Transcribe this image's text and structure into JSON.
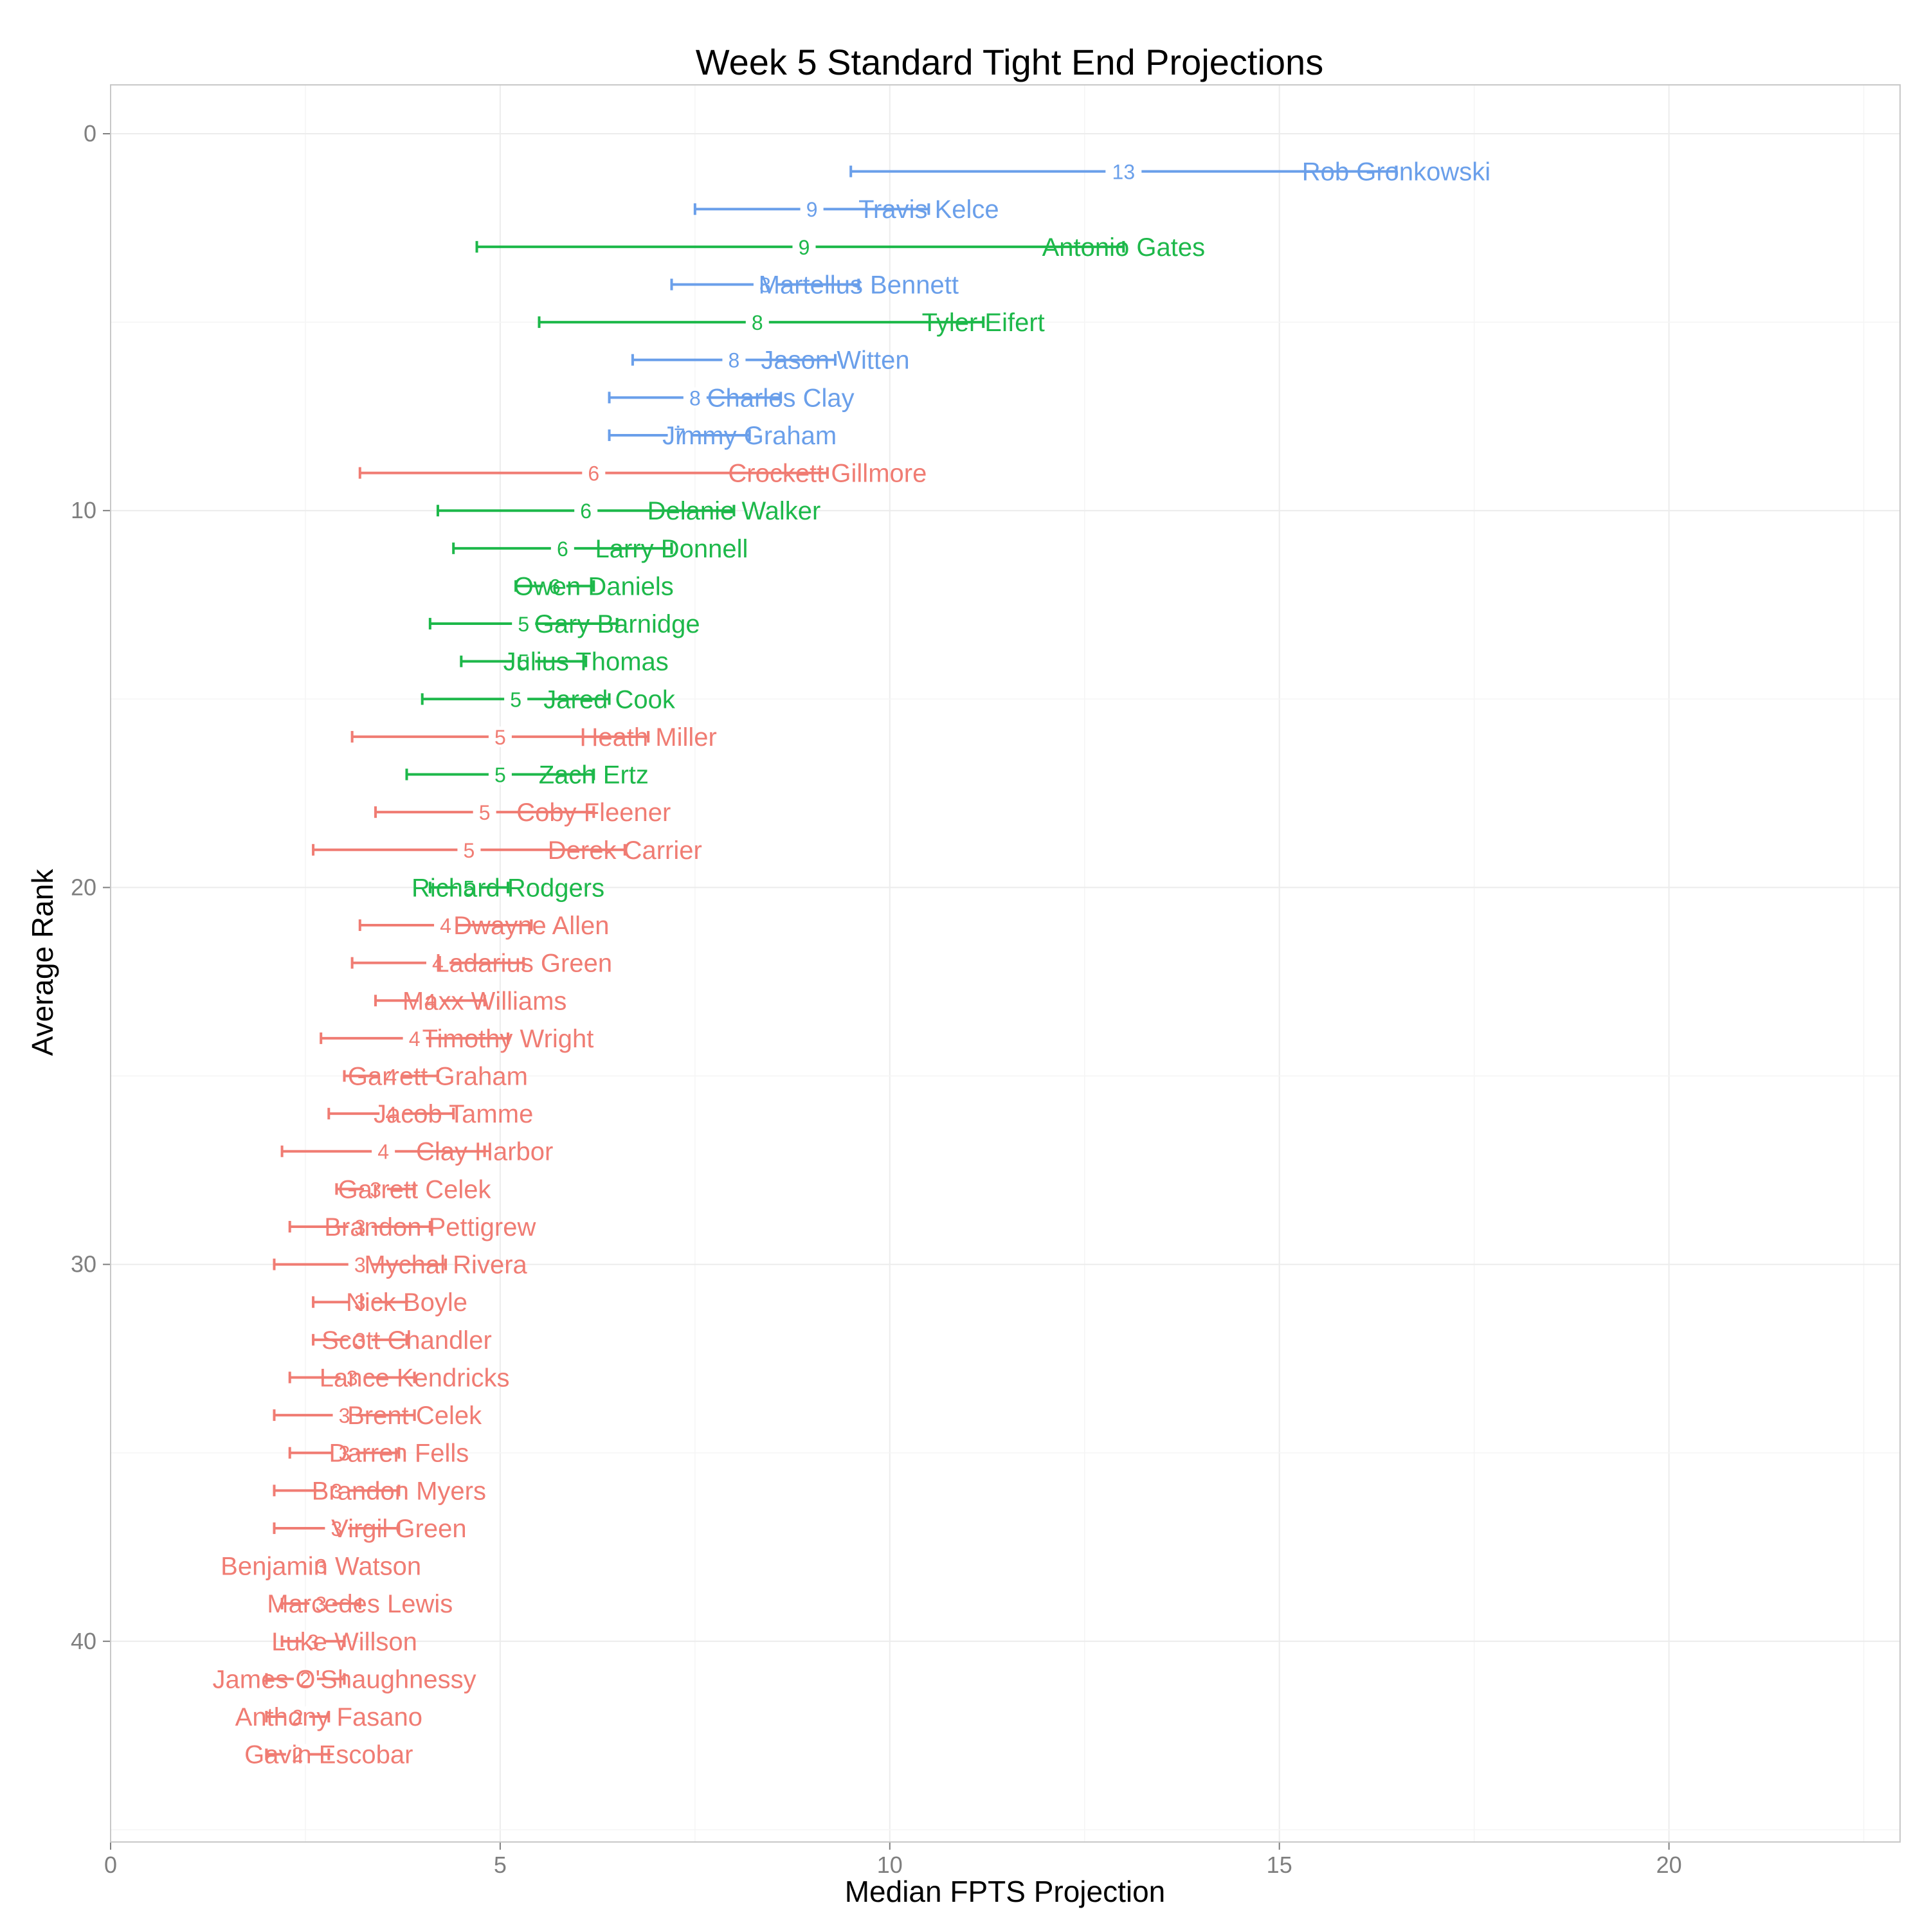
{
  "chart_data": {
    "type": "errorbar",
    "title": "Week 5 Standard Tight End Projections",
    "xlabel": "Median FPTS Projection",
    "ylabel": "Average Rank",
    "xlim": [
      0,
      23
    ],
    "ylim": [
      0,
      45
    ],
    "x_ticks": [
      0,
      5,
      10,
      15,
      20
    ],
    "y_ticks": [
      0,
      10,
      20,
      30,
      40
    ],
    "grid": true,
    "colors": {
      "tier1": "#6a9fea",
      "tier2": "#1db84a",
      "tier3": "#f07c73"
    },
    "players": [
      {
        "name": "Rob Gronkowski",
        "rank": 1,
        "proj_label": "13",
        "low": 9.5,
        "high": 16.5,
        "median": 13,
        "tier": "tier1"
      },
      {
        "name": "Travis Kelce",
        "rank": 2,
        "proj_label": "9",
        "low": 7.5,
        "high": 10.5,
        "median": 9,
        "tier": "tier1"
      },
      {
        "name": "Antonio Gates",
        "rank": 3,
        "proj_label": "9",
        "low": 4.7,
        "high": 13.0,
        "median": 8.9,
        "tier": "tier2"
      },
      {
        "name": "Martellus Bennett",
        "rank": 4,
        "proj_label": "8",
        "low": 7.2,
        "high": 9.6,
        "median": 8.4,
        "tier": "tier1"
      },
      {
        "name": "Tyler Eifert",
        "rank": 5,
        "proj_label": "8",
        "low": 5.5,
        "high": 11.2,
        "median": 8.3,
        "tier": "tier2"
      },
      {
        "name": "Jason Witten",
        "rank": 6,
        "proj_label": "8",
        "low": 6.7,
        "high": 9.3,
        "median": 8.0,
        "tier": "tier1"
      },
      {
        "name": "Charles Clay",
        "rank": 7,
        "proj_label": "8",
        "low": 6.4,
        "high": 8.6,
        "median": 7.5,
        "tier": "tier1"
      },
      {
        "name": "Jimmy Graham",
        "rank": 8,
        "proj_label": "7",
        "low": 6.4,
        "high": 8.2,
        "median": 7.3,
        "tier": "tier1"
      },
      {
        "name": "Crockett Gillmore",
        "rank": 9,
        "proj_label": "6",
        "low": 3.2,
        "high": 9.2,
        "median": 6.2,
        "tier": "tier3"
      },
      {
        "name": "Delanie Walker",
        "rank": 10,
        "proj_label": "6",
        "low": 4.2,
        "high": 8.0,
        "median": 6.1,
        "tier": "tier2"
      },
      {
        "name": "Larry Donnell",
        "rank": 11,
        "proj_label": "6",
        "low": 4.4,
        "high": 7.2,
        "median": 5.8,
        "tier": "tier2"
      },
      {
        "name": "Owen Daniels",
        "rank": 12,
        "proj_label": "6",
        "low": 5.2,
        "high": 6.2,
        "median": 5.7,
        "tier": "tier2"
      },
      {
        "name": "Gary Barnidge",
        "rank": 13,
        "proj_label": "5",
        "low": 4.1,
        "high": 6.5,
        "median": 5.3,
        "tier": "tier2"
      },
      {
        "name": "Julius Thomas",
        "rank": 14,
        "proj_label": "5",
        "low": 4.5,
        "high": 6.1,
        "median": 5.3,
        "tier": "tier2"
      },
      {
        "name": "Jared Cook",
        "rank": 15,
        "proj_label": "5",
        "low": 4.0,
        "high": 6.4,
        "median": 5.2,
        "tier": "tier2"
      },
      {
        "name": "Heath Miller",
        "rank": 16,
        "proj_label": "5",
        "low": 3.1,
        "high": 6.9,
        "median": 5.0,
        "tier": "tier3"
      },
      {
        "name": "Zach Ertz",
        "rank": 17,
        "proj_label": "5",
        "low": 3.8,
        "high": 6.2,
        "median": 5.0,
        "tier": "tier2"
      },
      {
        "name": "Coby Fleener",
        "rank": 18,
        "proj_label": "5",
        "low": 3.4,
        "high": 6.2,
        "median": 4.8,
        "tier": "tier3"
      },
      {
        "name": "Derek Carrier",
        "rank": 19,
        "proj_label": "5",
        "low": 2.6,
        "high": 6.6,
        "median": 4.6,
        "tier": "tier3"
      },
      {
        "name": "Richard Rodgers",
        "rank": 20,
        "proj_label": "5",
        "low": 4.1,
        "high": 5.1,
        "median": 4.6,
        "tier": "tier2"
      },
      {
        "name": "Dwayne Allen",
        "rank": 21,
        "proj_label": "4",
        "low": 3.2,
        "high": 5.4,
        "median": 4.3,
        "tier": "tier3"
      },
      {
        "name": "Ladarius Green",
        "rank": 22,
        "proj_label": "4",
        "low": 3.1,
        "high": 5.3,
        "median": 4.2,
        "tier": "tier3"
      },
      {
        "name": "Maxx Williams",
        "rank": 23,
        "proj_label": "4",
        "low": 3.4,
        "high": 4.8,
        "median": 4.1,
        "tier": "tier3"
      },
      {
        "name": "Timothy Wright",
        "rank": 24,
        "proj_label": "4",
        "low": 2.7,
        "high": 5.1,
        "median": 3.9,
        "tier": "tier3"
      },
      {
        "name": "Garrett Graham",
        "rank": 25,
        "proj_label": "4",
        "low": 3.0,
        "high": 4.2,
        "median": 3.6,
        "tier": "tier3"
      },
      {
        "name": "Jacob Tamme",
        "rank": 26,
        "proj_label": "4",
        "low": 2.8,
        "high": 4.4,
        "median": 3.6,
        "tier": "tier3"
      },
      {
        "name": "Clay Harbor",
        "rank": 27,
        "proj_label": "4",
        "low": 2.2,
        "high": 4.8,
        "median": 3.5,
        "tier": "tier3"
      },
      {
        "name": "Garrett Celek",
        "rank": 28,
        "proj_label": "3",
        "low": 2.9,
        "high": 3.9,
        "median": 3.4,
        "tier": "tier3"
      },
      {
        "name": "Brandon Pettigrew",
        "rank": 29,
        "proj_label": "3",
        "low": 2.3,
        "high": 4.1,
        "median": 3.2,
        "tier": "tier3"
      },
      {
        "name": "Mychal Rivera",
        "rank": 30,
        "proj_label": "3",
        "low": 2.1,
        "high": 4.3,
        "median": 3.2,
        "tier": "tier3"
      },
      {
        "name": "Nick Boyle",
        "rank": 31,
        "proj_label": "3",
        "low": 2.6,
        "high": 3.8,
        "median": 3.2,
        "tier": "tier3"
      },
      {
        "name": "Scott Chandler",
        "rank": 32,
        "proj_label": "3",
        "low": 2.6,
        "high": 3.8,
        "median": 3.2,
        "tier": "tier3"
      },
      {
        "name": "Lance Kendricks",
        "rank": 33,
        "proj_label": "3",
        "low": 2.3,
        "high": 3.9,
        "median": 3.1,
        "tier": "tier3"
      },
      {
        "name": "Brent Celek",
        "rank": 34,
        "proj_label": "3",
        "low": 2.1,
        "high": 3.9,
        "median": 3.0,
        "tier": "tier3"
      },
      {
        "name": "Darren Fells",
        "rank": 35,
        "proj_label": "3",
        "low": 2.3,
        "high": 3.7,
        "median": 3.0,
        "tier": "tier3"
      },
      {
        "name": "Brandon Myers",
        "rank": 36,
        "proj_label": "3",
        "low": 2.1,
        "high": 3.7,
        "median": 2.9,
        "tier": "tier3"
      },
      {
        "name": "Virgil Green",
        "rank": 37,
        "proj_label": "3",
        "low": 2.1,
        "high": 3.7,
        "median": 2.9,
        "tier": "tier3"
      },
      {
        "name": "Benjamin Watson",
        "rank": 38,
        "proj_label": "3",
        "low": null,
        "high": null,
        "median": 2.7,
        "tier": "tier3"
      },
      {
        "name": "Marcedes Lewis",
        "rank": 39,
        "proj_label": "3",
        "low": 2.2,
        "high": 3.2,
        "median": 2.7,
        "tier": "tier3"
      },
      {
        "name": "Luke Willson",
        "rank": 40,
        "proj_label": "3",
        "low": 2.2,
        "high": 3.0,
        "median": 2.6,
        "tier": "tier3"
      },
      {
        "name": "James O'Shaughnessy",
        "rank": 41,
        "proj_label": "2",
        "low": 2.0,
        "high": 3.0,
        "median": 2.5,
        "tier": "tier3"
      },
      {
        "name": "Anthony Fasano",
        "rank": 42,
        "proj_label": "2",
        "low": 2.0,
        "high": 2.8,
        "median": 2.4,
        "tier": "tier3"
      },
      {
        "name": "Gavin Escobar",
        "rank": 43,
        "proj_label": "2",
        "low": 2.0,
        "high": 2.8,
        "median": 2.4,
        "tier": "tier3"
      }
    ]
  }
}
